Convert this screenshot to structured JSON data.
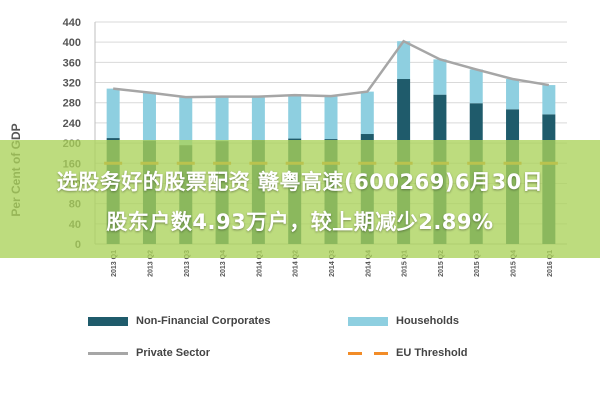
{
  "chart_data": {
    "type": "bar",
    "ylabel": "Per Cent of GDP",
    "ylim": [
      0,
      440
    ],
    "yticks": [
      0,
      40,
      80,
      120,
      160,
      200,
      240,
      280,
      320,
      360,
      400,
      440
    ],
    "categories": [
      "2013 Q1",
      "2013 Q2",
      "2013 Q3",
      "2013 Q4",
      "2014 Q1",
      "2014 Q2",
      "2014 Q3",
      "2014 Q4",
      "2015 Q1",
      "2015 Q2",
      "2015 Q3",
      "2015 Q4",
      "2016 Q1"
    ],
    "series": [
      {
        "name": "Non-Financial Corporates",
        "kind": "stacked-bar",
        "color": "#1f5b6b",
        "values": [
          210,
          205,
          196,
          204,
          206,
          209,
          208,
          218,
          327,
          296,
          279,
          267,
          257
        ]
      },
      {
        "name": "Households",
        "kind": "stacked-bar",
        "color": "#8ecfe0",
        "values": [
          98,
          95,
          95,
          88,
          86,
          86,
          85,
          84,
          75,
          70,
          67,
          60,
          58
        ]
      },
      {
        "name": "Private Sector",
        "kind": "line",
        "color": "#a6a6a6",
        "values": [
          308,
          300,
          291,
          292,
          292,
          295,
          293,
          302,
          402,
          366,
          346,
          327,
          315
        ]
      },
      {
        "name": "EU Threshold",
        "kind": "dashed-line",
        "color": "#f28c28",
        "values": [
          160,
          160,
          160,
          160,
          160,
          160,
          160,
          160,
          160,
          160,
          160,
          160,
          160
        ]
      }
    ],
    "grid": true,
    "legend_position": "bottom"
  },
  "overlay": {
    "line1": "选股务好的股票配资 赣粤高速(600269)6月30日",
    "line2": "股东户数4.93万户，较上期减少2.89%"
  }
}
